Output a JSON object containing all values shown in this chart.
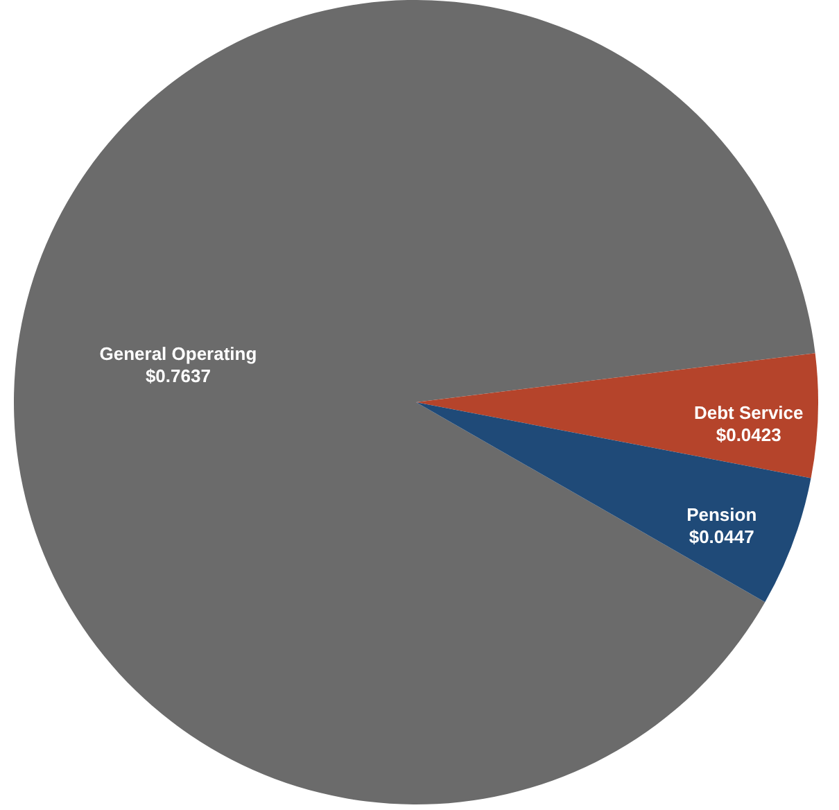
{
  "chart_data": {
    "type": "pie",
    "categories": [
      "General Operating",
      "Debt Service",
      "Pension"
    ],
    "values": [
      0.7637,
      0.0423,
      0.0447
    ],
    "colors": [
      "#6b6b6b",
      "#b5442b",
      "#1f4a78"
    ],
    "value_labels": [
      "$0.7637",
      "$0.0423",
      "$0.0447"
    ],
    "data_labels": true
  }
}
